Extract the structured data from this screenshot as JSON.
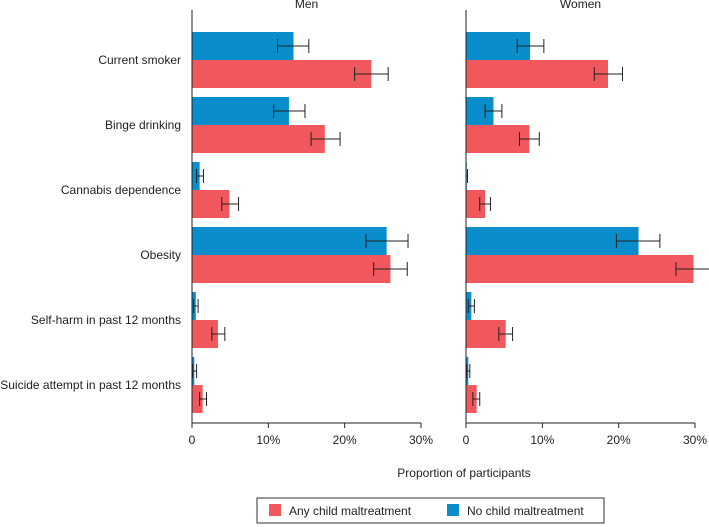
{
  "chart_data": {
    "type": "bar",
    "orientation": "horizontal",
    "xlabel": "Proportion of participants",
    "xlim": [
      0,
      30
    ],
    "xticks": [
      0,
      10,
      20,
      30
    ],
    "xtick_labels": [
      "0",
      "10%",
      "20%",
      "30%"
    ],
    "categories": [
      "Current smoker",
      "Binge drinking",
      "Cannabis dependence",
      "Obesity",
      "Self-harm in past 12 months",
      "Suicide attempt in past 12 months"
    ],
    "legend": [
      {
        "name": "Any child maltreatment",
        "color": "#f0585d"
      },
      {
        "name": "No child maltreatment",
        "color": "#0a8ecb"
      }
    ],
    "panels": [
      {
        "title": "Men",
        "series": [
          {
            "name": "No child maltreatment",
            "color": "#0a8ecb",
            "values": [
              13.3,
              12.7,
              1.0,
              25.5,
              0.5,
              0.3
            ],
            "ci_low": [
              11.2,
              10.7,
              0.6,
              22.8,
              0.2,
              0.1
            ],
            "ci_high": [
              15.3,
              14.8,
              1.5,
              28.3,
              0.8,
              0.6
            ]
          },
          {
            "name": "Any child maltreatment",
            "color": "#f0585d",
            "values": [
              23.5,
              17.4,
              4.9,
              26.0,
              3.4,
              1.4
            ],
            "ci_low": [
              21.3,
              15.6,
              3.9,
              23.8,
              2.6,
              1.0
            ],
            "ci_high": [
              25.7,
              19.4,
              6.1,
              28.2,
              4.3,
              1.9
            ]
          }
        ]
      },
      {
        "title": "Women",
        "series": [
          {
            "name": "No child maltreatment",
            "color": "#0a8ecb",
            "values": [
              8.4,
              3.6,
              0.1,
              22.6,
              0.7,
              0.3
            ],
            "ci_low": [
              6.7,
              2.5,
              0.0,
              19.7,
              0.3,
              0.1
            ],
            "ci_high": [
              10.2,
              4.7,
              0.2,
              25.4,
              1.1,
              0.5
            ]
          },
          {
            "name": "Any child maltreatment",
            "color": "#f0585d",
            "values": [
              18.6,
              8.3,
              2.5,
              29.8,
              5.2,
              1.4
            ],
            "ci_low": [
              16.8,
              7.0,
              1.8,
              27.5,
              4.3,
              0.9
            ],
            "ci_high": [
              20.5,
              9.6,
              3.2,
              32.1,
              6.1,
              1.8
            ]
          }
        ]
      }
    ]
  }
}
